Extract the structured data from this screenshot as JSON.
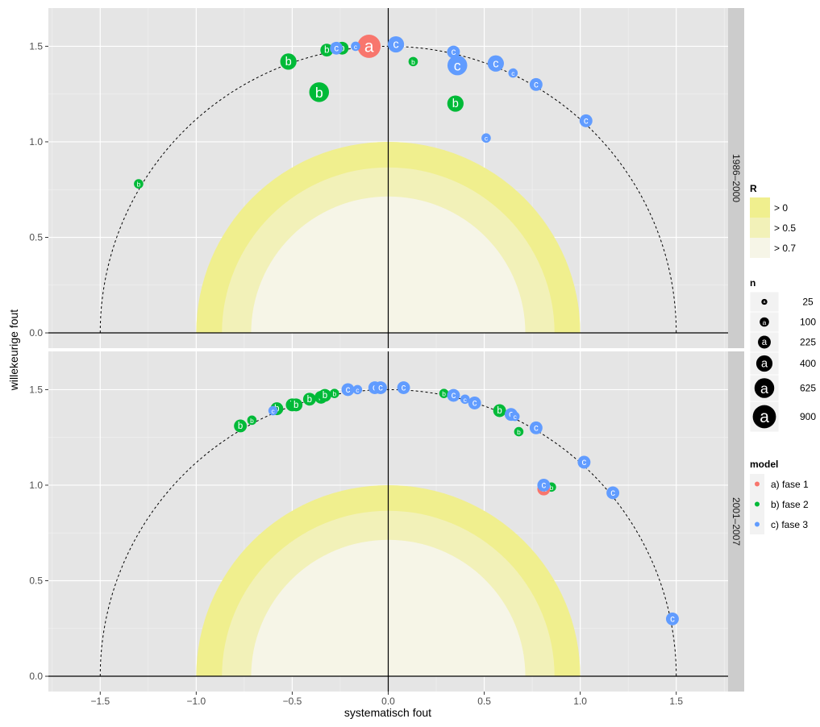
{
  "chart_data": {
    "type": "scatter",
    "xlabel": "systematisch fout",
    "ylabel": "willekeurige fout",
    "xlim": [
      -1.77,
      1.77
    ],
    "ylim": [
      -0.08,
      1.7
    ],
    "x_ticks": [
      -1.5,
      -1.0,
      -0.5,
      0.0,
      0.5,
      1.0,
      1.5
    ],
    "x_tick_labels": [
      "−1.5",
      "−1.0",
      "−0.5",
      "0.0",
      "0.5",
      "1.0",
      "1.5"
    ],
    "y_ticks": [
      0.0,
      0.5,
      1.0,
      1.5
    ],
    "y_tick_labels": [
      "0.0",
      "0.5",
      "1.0",
      "1.5"
    ],
    "reference_circle_radius": 1.5,
    "r_bands": [
      {
        "label": "> 0",
        "radius": 1.0,
        "color": "#f0ef8e"
      },
      {
        "label": "> 0.5",
        "radius": 0.866,
        "color": "#f2f1b8"
      },
      {
        "label": "> 0.7",
        "radius": 0.714,
        "color": "#f6f5e7"
      }
    ],
    "legend_R": {
      "title": "R",
      "items": [
        "> 0",
        "> 0.5",
        "> 0.7"
      ]
    },
    "legend_n": {
      "title": "n",
      "glyph": "a",
      "items": [
        {
          "label": "25",
          "value": 25
        },
        {
          "label": "100",
          "value": 100
        },
        {
          "label": "225",
          "value": 225
        },
        {
          "label": "400",
          "value": 400
        },
        {
          "label": "625",
          "value": 625
        },
        {
          "label": "900",
          "value": 900
        }
      ]
    },
    "legend_model": {
      "title": "model",
      "items": [
        {
          "label": "a) fase 1",
          "letter": "a",
          "color": "#f8766d"
        },
        {
          "label": "b) fase 2",
          "letter": "b",
          "color": "#00ba38"
        },
        {
          "label": "c) fase 3",
          "letter": "c",
          "color": "#619cff"
        }
      ]
    },
    "panels": [
      {
        "strip": "1986–2000",
        "points": [
          {
            "model": "a",
            "x": -0.1,
            "y": 1.5,
            "n": 900
          },
          {
            "model": "b",
            "x": -1.3,
            "y": 0.78,
            "n": 100
          },
          {
            "model": "b",
            "x": -0.52,
            "y": 1.42,
            "n": 400
          },
          {
            "model": "b",
            "x": -0.36,
            "y": 1.26,
            "n": 625
          },
          {
            "model": "b",
            "x": -0.32,
            "y": 1.48,
            "n": 225
          },
          {
            "model": "b",
            "x": -0.24,
            "y": 1.49,
            "n": 225
          },
          {
            "model": "b",
            "x": 0.13,
            "y": 1.42,
            "n": 100
          },
          {
            "model": "b",
            "x": 0.35,
            "y": 1.2,
            "n": 400
          },
          {
            "model": "c",
            "x": -0.27,
            "y": 1.49,
            "n": 225
          },
          {
            "model": "c",
            "x": -0.17,
            "y": 1.5,
            "n": 100
          },
          {
            "model": "c",
            "x": 0.04,
            "y": 1.51,
            "n": 400
          },
          {
            "model": "c",
            "x": 0.34,
            "y": 1.47,
            "n": 225
          },
          {
            "model": "c",
            "x": 0.36,
            "y": 1.4,
            "n": 625
          },
          {
            "model": "c",
            "x": 0.56,
            "y": 1.41,
            "n": 400
          },
          {
            "model": "c",
            "x": 0.65,
            "y": 1.36,
            "n": 100
          },
          {
            "model": "c",
            "x": 0.77,
            "y": 1.3,
            "n": 225
          },
          {
            "model": "c",
            "x": 1.03,
            "y": 1.11,
            "n": 225
          },
          {
            "model": "c",
            "x": 0.51,
            "y": 1.02,
            "n": 100
          }
        ]
      },
      {
        "strip": "2001–2007",
        "points": [
          {
            "model": "b",
            "x": -0.77,
            "y": 1.31,
            "n": 225
          },
          {
            "model": "b",
            "x": -0.71,
            "y": 1.34,
            "n": 100
          },
          {
            "model": "b",
            "x": -0.58,
            "y": 1.4,
            "n": 225
          },
          {
            "model": "b",
            "x": -0.5,
            "y": 1.42,
            "n": 225
          },
          {
            "model": "b",
            "x": -0.48,
            "y": 1.42,
            "n": 225
          },
          {
            "model": "b",
            "x": -0.41,
            "y": 1.45,
            "n": 225
          },
          {
            "model": "b",
            "x": -0.35,
            "y": 1.46,
            "n": 225
          },
          {
            "model": "b",
            "x": -0.33,
            "y": 1.47,
            "n": 225
          },
          {
            "model": "b",
            "x": -0.28,
            "y": 1.48,
            "n": 100
          },
          {
            "model": "b",
            "x": 0.29,
            "y": 1.48,
            "n": 100
          },
          {
            "model": "b",
            "x": 0.58,
            "y": 1.39,
            "n": 225
          },
          {
            "model": "b",
            "x": 0.68,
            "y": 1.28,
            "n": 100
          },
          {
            "model": "b",
            "x": 0.85,
            "y": 0.99,
            "n": 100
          },
          {
            "model": "a",
            "x": 0.81,
            "y": 0.98,
            "n": 225
          },
          {
            "model": "c",
            "x": -0.6,
            "y": 1.39,
            "n": 100
          },
          {
            "model": "c",
            "x": -0.21,
            "y": 1.5,
            "n": 225
          },
          {
            "model": "c",
            "x": -0.16,
            "y": 1.5,
            "n": 100
          },
          {
            "model": "c",
            "x": -0.07,
            "y": 1.51,
            "n": 225
          },
          {
            "model": "c",
            "x": -0.04,
            "y": 1.51,
            "n": 225
          },
          {
            "model": "c",
            "x": 0.08,
            "y": 1.51,
            "n": 225
          },
          {
            "model": "c",
            "x": 0.34,
            "y": 1.47,
            "n": 225
          },
          {
            "model": "c",
            "x": 0.4,
            "y": 1.45,
            "n": 100
          },
          {
            "model": "c",
            "x": 0.45,
            "y": 1.43,
            "n": 225
          },
          {
            "model": "c",
            "x": 0.64,
            "y": 1.37,
            "n": 225
          },
          {
            "model": "c",
            "x": 0.66,
            "y": 1.36,
            "n": 100
          },
          {
            "model": "c",
            "x": 0.77,
            "y": 1.3,
            "n": 225
          },
          {
            "model": "c",
            "x": 0.81,
            "y": 1.0,
            "n": 225
          },
          {
            "model": "c",
            "x": 1.02,
            "y": 1.12,
            "n": 225
          },
          {
            "model": "c",
            "x": 1.17,
            "y": 0.96,
            "n": 225
          },
          {
            "model": "c",
            "x": 1.48,
            "y": 0.3,
            "n": 225
          }
        ]
      }
    ]
  }
}
